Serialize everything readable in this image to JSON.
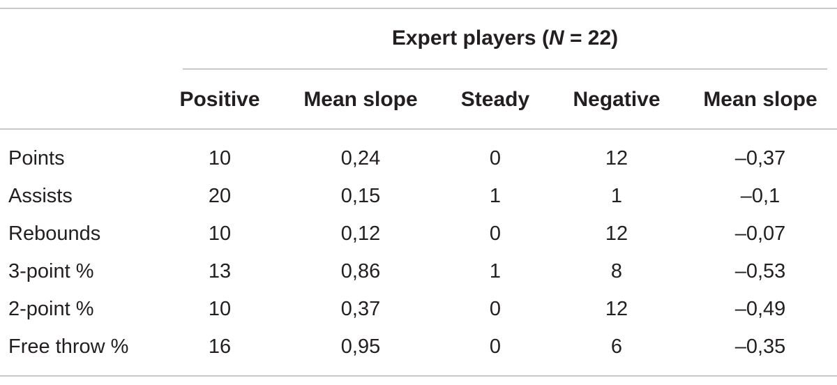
{
  "table": {
    "group_header": {
      "prefix": "Expert players (",
      "italic": "N",
      "suffix": " = 22)"
    },
    "columns": [
      "Positive",
      "Mean slope",
      "Steady",
      "Negative",
      "Mean slope"
    ],
    "rows": [
      {
        "label": "Points",
        "values": [
          "10",
          "0,24",
          "0",
          "12",
          "–0,37"
        ]
      },
      {
        "label": "Assists",
        "values": [
          "20",
          "0,15",
          "1",
          "1",
          "–0,1"
        ]
      },
      {
        "label": "Rebounds",
        "values": [
          "10",
          "0,12",
          "0",
          "12",
          "–0,07"
        ]
      },
      {
        "label": "3-point %",
        "values": [
          "13",
          "0,86",
          "1",
          "8",
          "–0,53"
        ]
      },
      {
        "label": "2-point %",
        "values": [
          "10",
          "0,37",
          "0",
          "12",
          "–0,49"
        ]
      },
      {
        "label": "Free throw %",
        "values": [
          "16",
          "0,95",
          "0",
          "6",
          "–0,35"
        ]
      }
    ]
  }
}
